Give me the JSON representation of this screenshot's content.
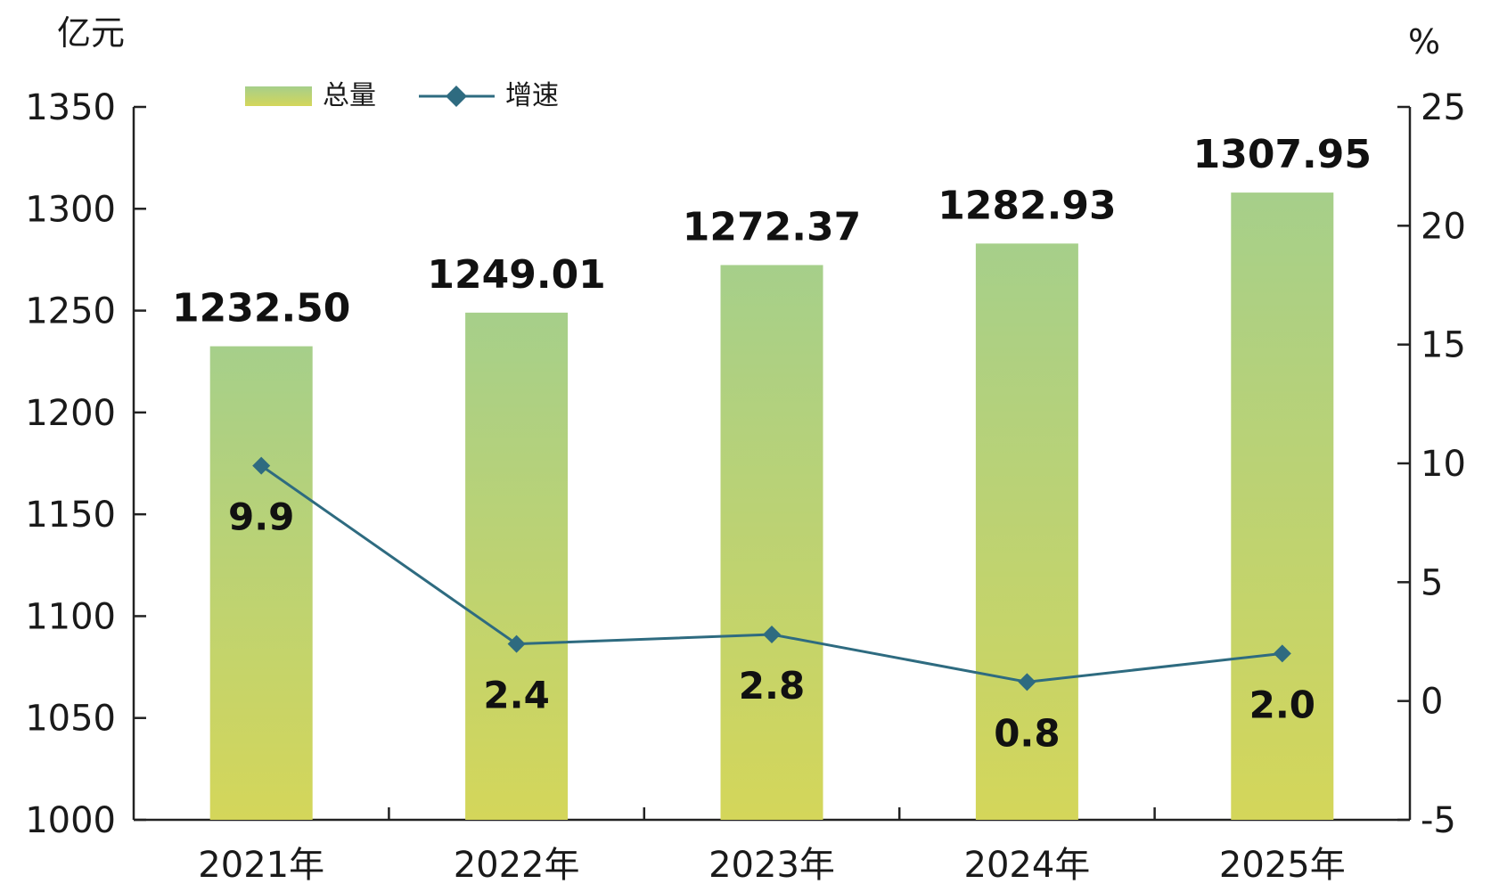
{
  "chart_data": {
    "type": "bar",
    "categories": [
      "2021年",
      "2022年",
      "2023年",
      "2024年",
      "2025年"
    ],
    "series": [
      {
        "name": "总量",
        "type": "bar",
        "axis": "left",
        "values": [
          1232.5,
          1249.01,
          1272.37,
          1282.93,
          1307.95
        ],
        "labels": [
          "1232.50",
          "1249.01",
          "1272.37",
          "1282.93",
          "1307.95"
        ],
        "color_top": "#a6cf8a",
        "color_bottom": "#d4d65a"
      },
      {
        "name": "增速",
        "type": "line",
        "axis": "right",
        "values": [
          9.9,
          2.4,
          2.8,
          0.8,
          2.0
        ],
        "labels": [
          "9.9",
          "2.4",
          "2.8",
          "0.8",
          "2.0"
        ],
        "color": "#2e6b80",
        "marker": "diamond"
      }
    ],
    "y_left": {
      "unit": "亿元",
      "ylim": [
        1000,
        1350
      ],
      "ticks": [
        "1000",
        "1050",
        "1100",
        "1150",
        "1200",
        "1250",
        "1300",
        "1350"
      ]
    },
    "y_right": {
      "unit": "%",
      "ylim": [
        -5,
        25
      ],
      "ticks": [
        "-5",
        "0",
        "5",
        "10",
        "15",
        "20",
        "25"
      ]
    },
    "legend": "top-left",
    "grid": false
  }
}
